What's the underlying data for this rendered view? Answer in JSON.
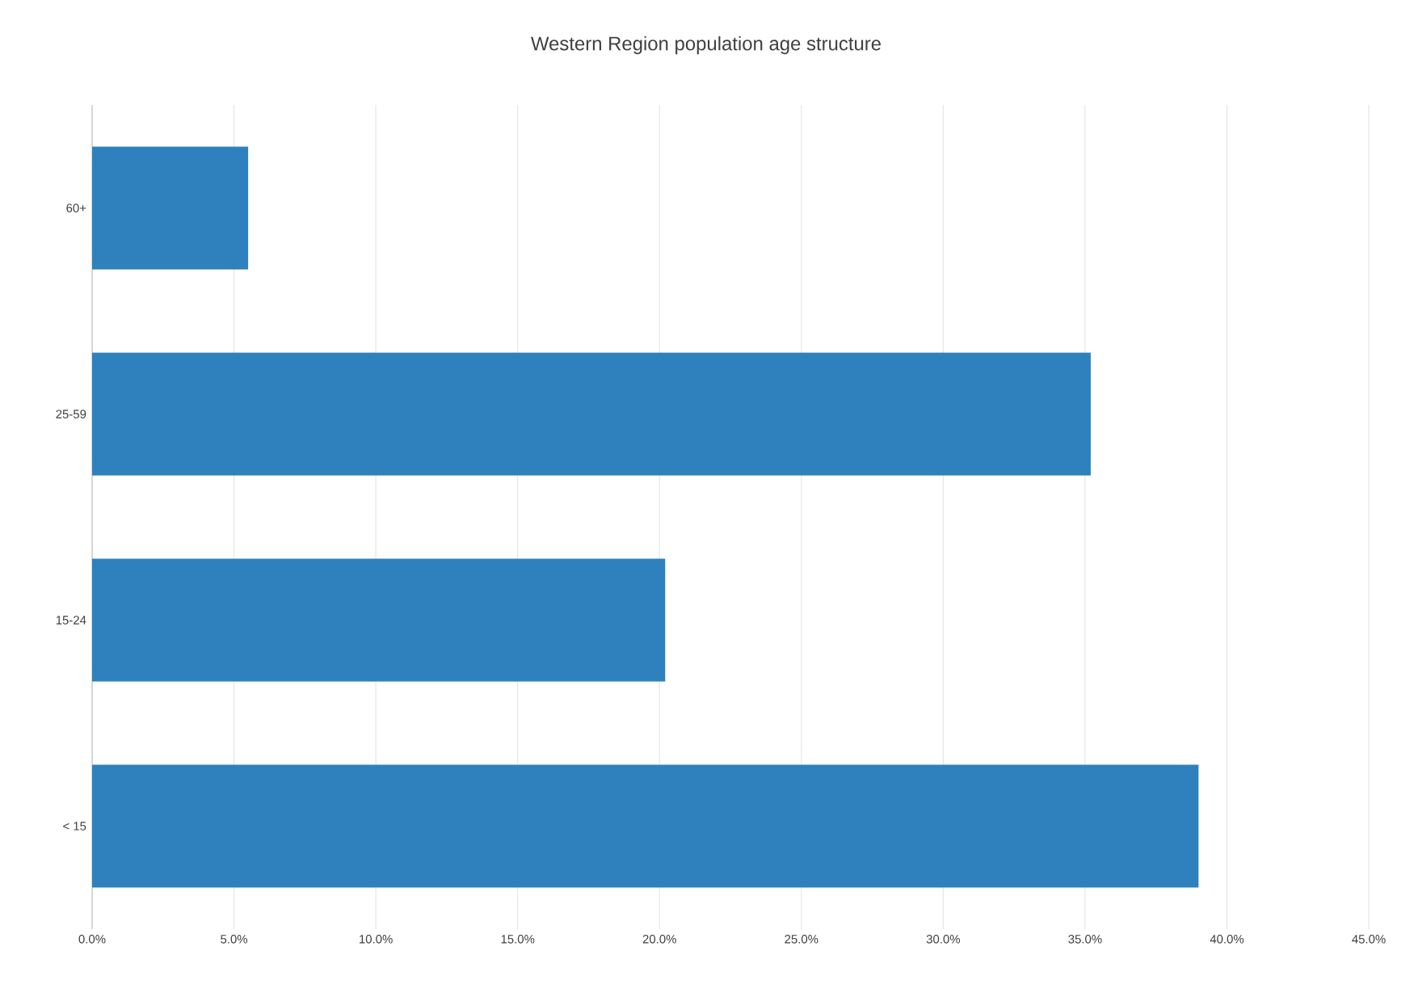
{
  "chart_data": {
    "type": "bar",
    "orientation": "horizontal",
    "title": "Western Region population age structure",
    "categories": [
      "60+",
      "25-59",
      "15-24",
      "< 15"
    ],
    "values": [
      5.5,
      35.2,
      20.2,
      39.0
    ],
    "color": "#2e81bc",
    "xlim": [
      0,
      45
    ],
    "xticks": [
      {
        "value": 0,
        "label": "0.0%"
      },
      {
        "value": 5,
        "label": "5.0%"
      },
      {
        "value": 10,
        "label": "10.0%"
      },
      {
        "value": 15,
        "label": "15.0%"
      },
      {
        "value": 20,
        "label": "20.0%"
      },
      {
        "value": 25,
        "label": "25.0%"
      },
      {
        "value": 30,
        "label": "30.0%"
      },
      {
        "value": 35,
        "label": "35.0%"
      },
      {
        "value": 40,
        "label": "40.0%"
      },
      {
        "value": 45,
        "label": "45.0%"
      }
    ],
    "grid": "x"
  }
}
